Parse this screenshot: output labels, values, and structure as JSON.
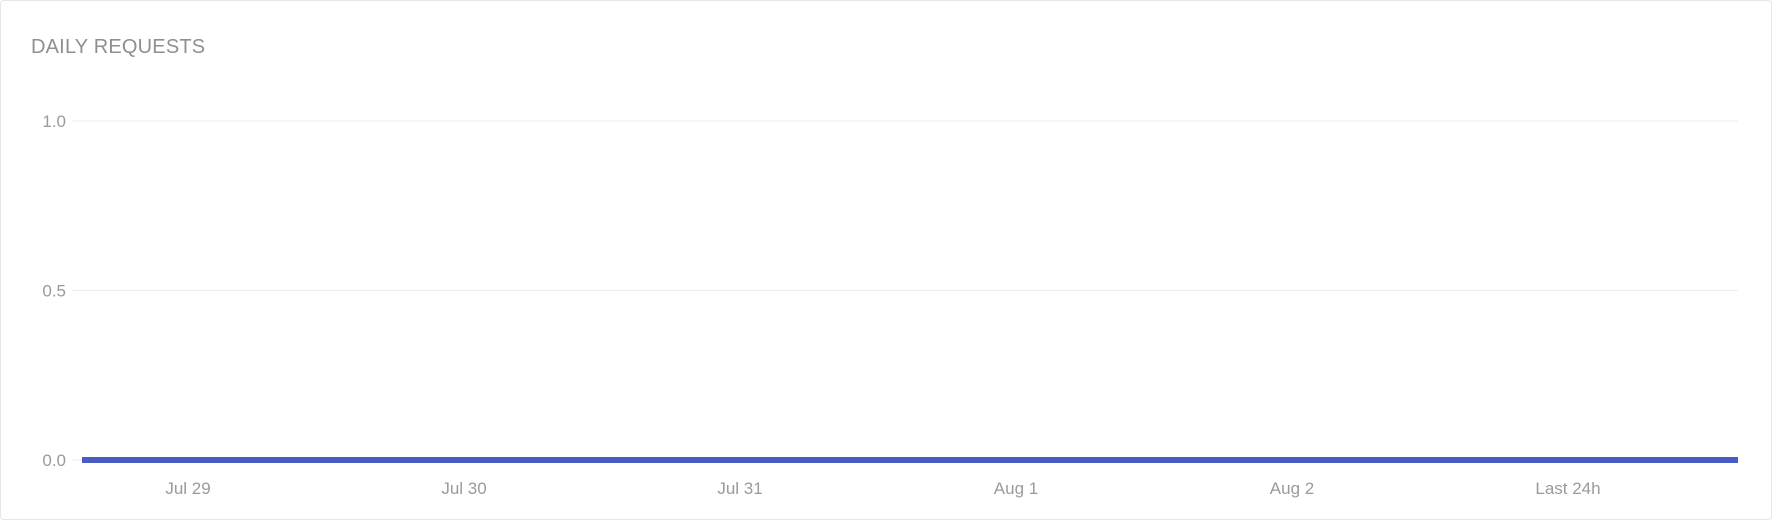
{
  "card": {
    "title": "DAILY REQUESTS"
  },
  "chart_data": {
    "type": "line",
    "title": "DAILY REQUESTS",
    "xlabel": "",
    "ylabel": "",
    "categories": [
      "Jul 29",
      "Jul 30",
      "Jul 31",
      "Aug 1",
      "Aug 2",
      "Last 24h"
    ],
    "series": [
      {
        "values": [
          0,
          0,
          0,
          0,
          0,
          0
        ],
        "color": "#4a5cc4"
      }
    ],
    "ylim": [
      0,
      1
    ],
    "yticks": [
      0.0,
      0.5,
      1.0
    ],
    "ytick_labels": [
      "0.0",
      "0.5",
      "1.0"
    ],
    "grid": true,
    "legend": "none"
  }
}
